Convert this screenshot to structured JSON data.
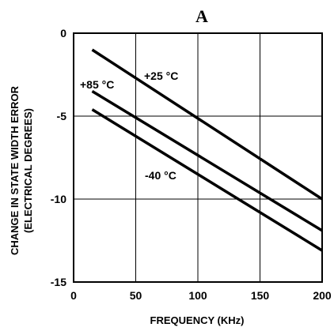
{
  "chart_data": {
    "type": "line",
    "title": "A",
    "xlabel": "FREQUENCY (KHz)",
    "ylabel_line1": "CHANGE IN STATE WIDTH ERROR",
    "ylabel_line2": "(ELECTRICAL DEGREES)",
    "xlim": [
      0,
      200
    ],
    "ylim": [
      -15,
      0
    ],
    "xticks": [
      0,
      50,
      100,
      150,
      200
    ],
    "yticks": [
      0,
      -5,
      -10,
      -15
    ],
    "xtick_labels": [
      "0",
      "50",
      "100",
      "150",
      "200"
    ],
    "ytick_labels": [
      "0",
      "-5",
      "-10",
      "-15"
    ],
    "grid": true,
    "series": [
      {
        "name": "+25 °C",
        "x": [
          15,
          200
        ],
        "y": [
          -1.0,
          -10.0
        ]
      },
      {
        "name": "+85 °C",
        "x": [
          15,
          200
        ],
        "y": [
          -3.5,
          -11.9
        ]
      },
      {
        "name": "-40 °C",
        "x": [
          15,
          200
        ],
        "y": [
          -4.6,
          -13.1
        ]
      }
    ]
  }
}
